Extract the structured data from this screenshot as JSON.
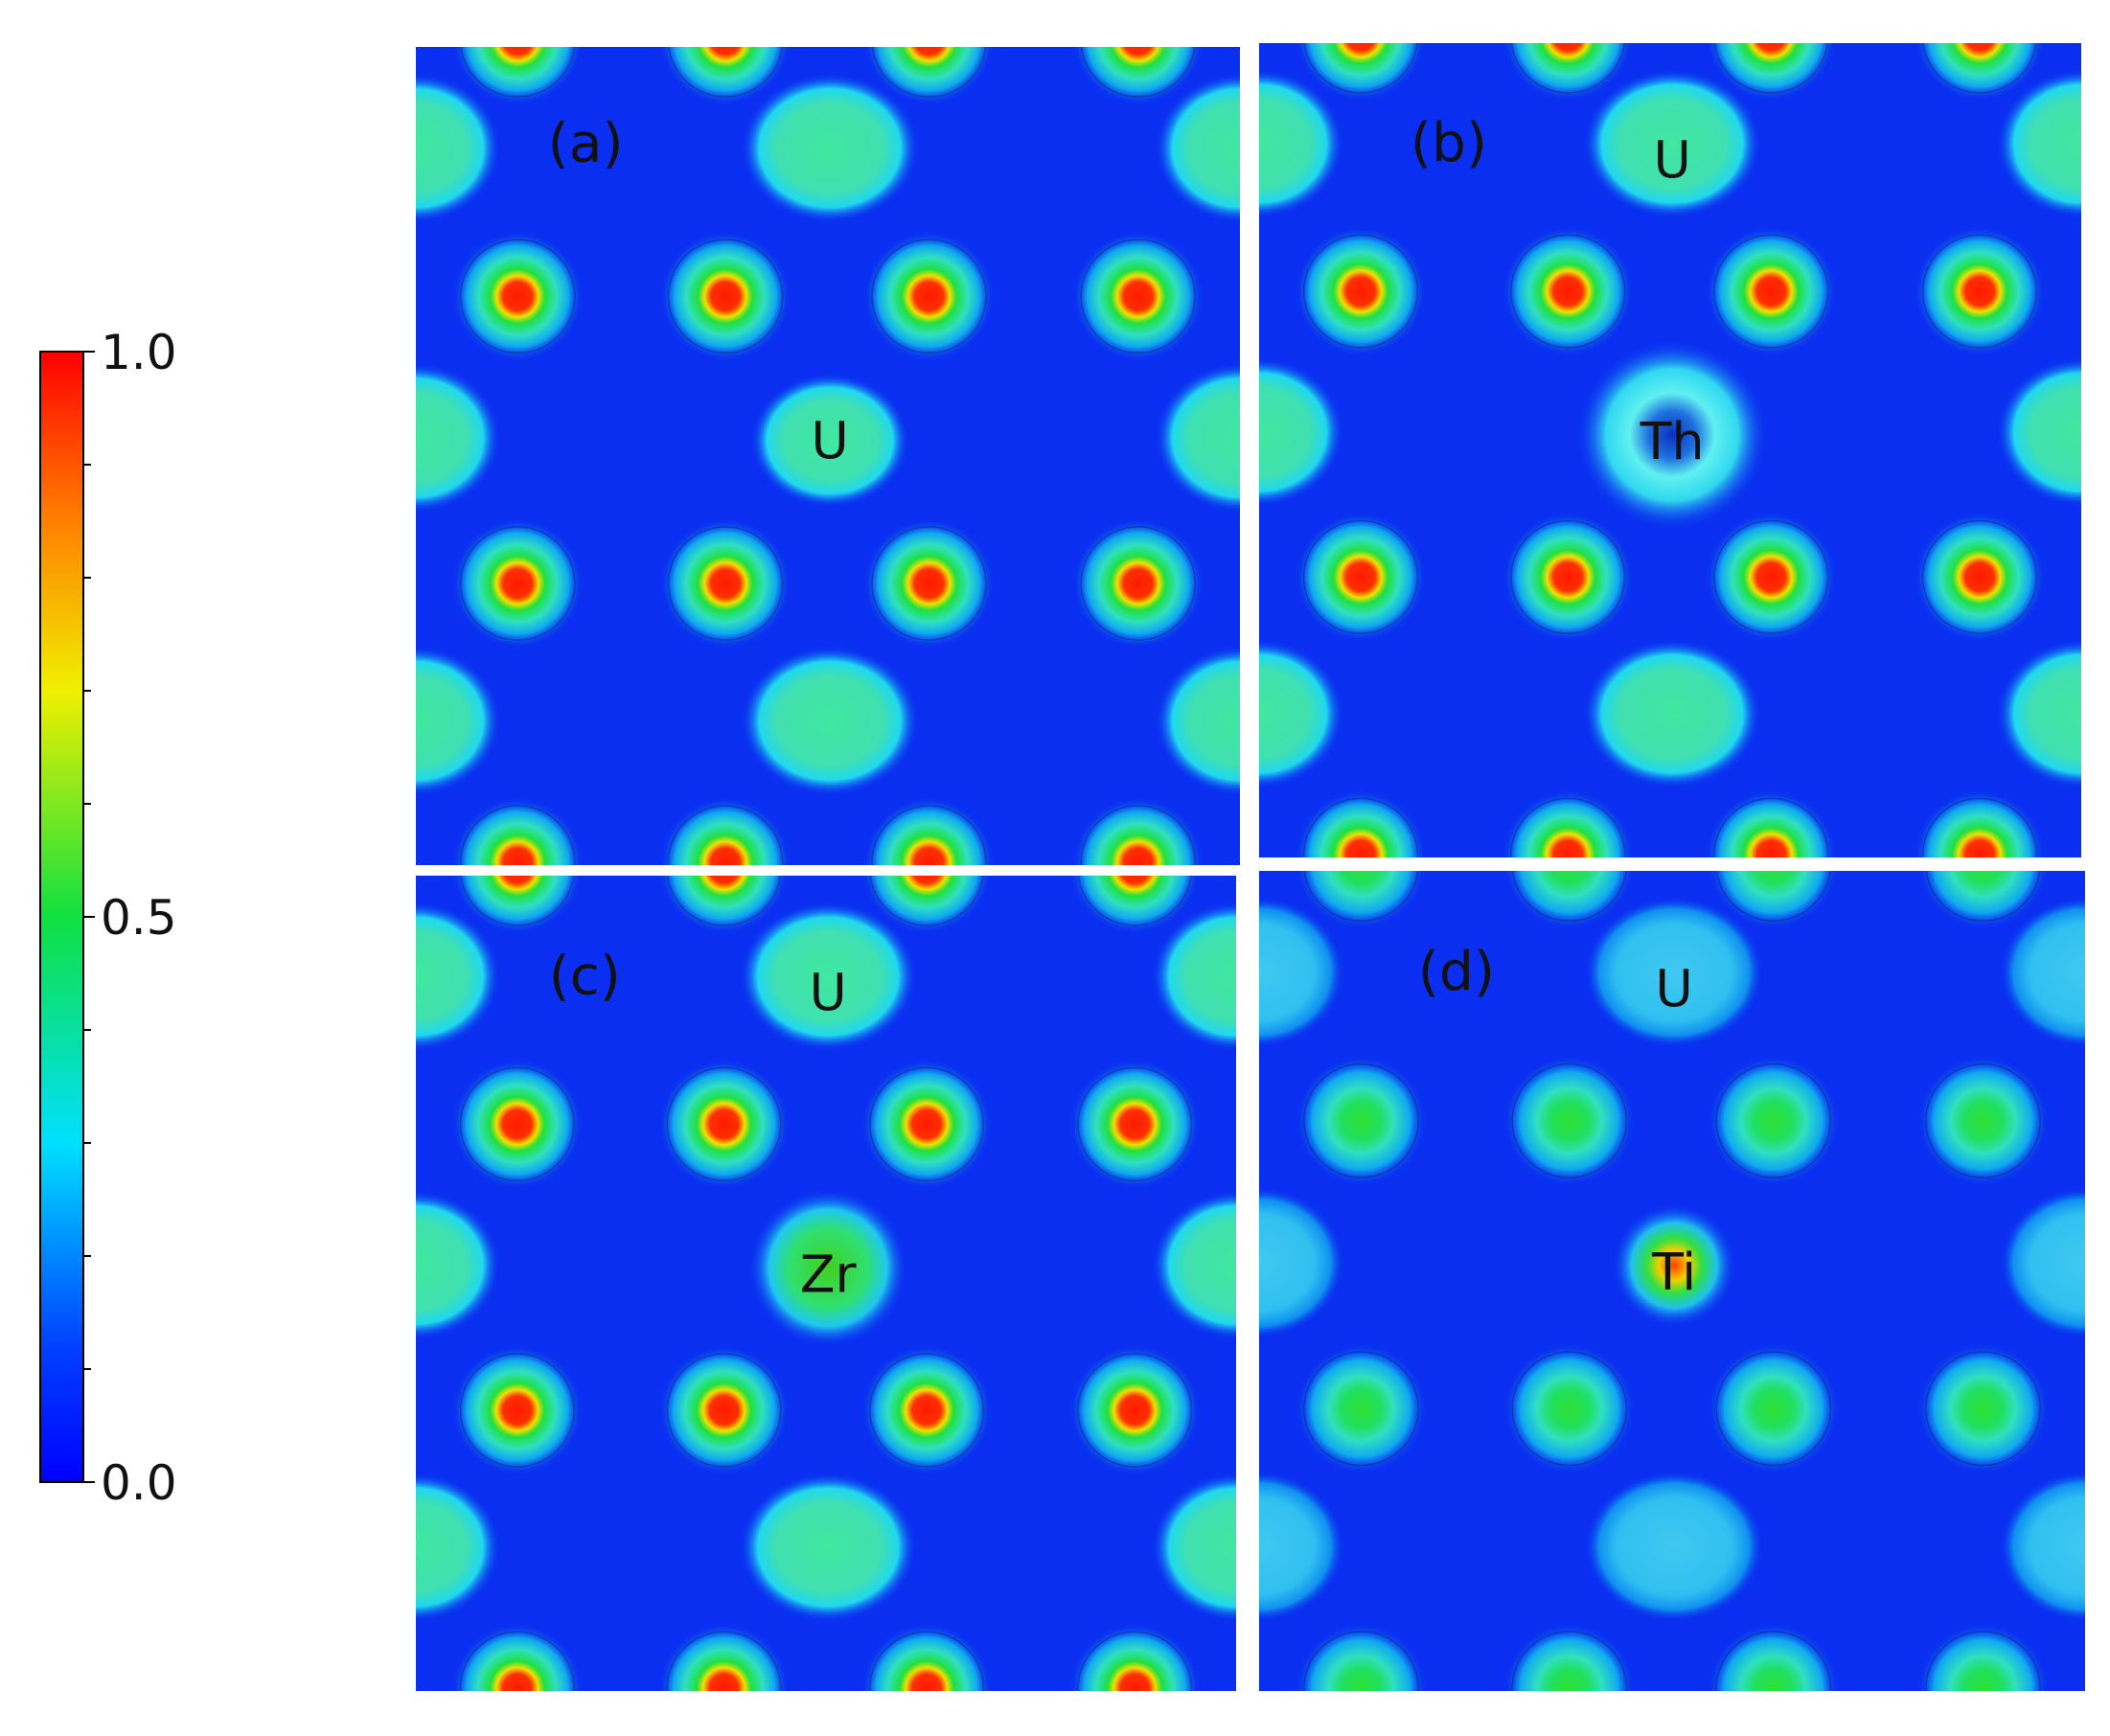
{
  "colorbar": {
    "lim": [
      0,
      1
    ],
    "ticks": [
      {
        "value": 0,
        "label": "0.0"
      },
      0.5,
      {
        "value": 1,
        "label": "1.0"
      }
    ],
    "minor_ticks": [
      0.1,
      0.2,
      0.3,
      0.4,
      0.6,
      0.7,
      0.8,
      0.9
    ]
  },
  "panels": [
    {
      "label": "(a)",
      "atoms": [
        "U"
      ]
    },
    {
      "label": "(b)",
      "atoms": [
        "U",
        "Th"
      ]
    },
    {
      "label": "(c)",
      "atoms": [
        "U",
        "Zr"
      ]
    },
    {
      "label": "(d)",
      "atoms": [
        "U",
        "Ti"
      ]
    }
  ]
}
